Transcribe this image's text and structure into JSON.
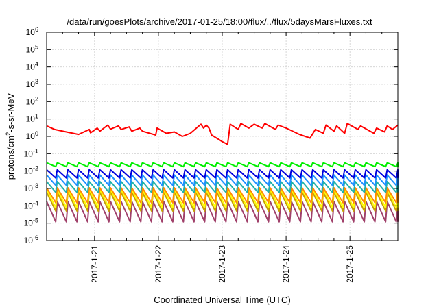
{
  "chart_data": {
    "type": "line",
    "title": "/data/run/goesPlots/archive/2017-01-25/18:00/flux/../flux/5daysMarsFluxes.txt",
    "xlabel": "Coordinated Universal Time (UTC)",
    "ylabel": {
      "base": "protons/cm",
      "sup": "2",
      "rest": "-s-sr-MeV"
    },
    "y_scale": "log",
    "ylim": [
      1e-06,
      1000000.0
    ],
    "y_ticks": [
      {
        "value": 1e-06,
        "base": "10",
        "exp": "-6"
      },
      {
        "value": 1e-05,
        "base": "10",
        "exp": "-5"
      },
      {
        "value": 0.0001,
        "base": "10",
        "exp": "-4"
      },
      {
        "value": 0.001,
        "base": "10",
        "exp": "-3"
      },
      {
        "value": 0.01,
        "base": "10",
        "exp": "-2"
      },
      {
        "value": 0.1,
        "base": "10",
        "exp": "-1"
      },
      {
        "value": 1,
        "base": "10",
        "exp": "0"
      },
      {
        "value": 10,
        "base": "10",
        "exp": "1"
      },
      {
        "value": 100,
        "base": "10",
        "exp": "2"
      },
      {
        "value": 1000,
        "base": "10",
        "exp": "3"
      },
      {
        "value": 10000,
        "base": "10",
        "exp": "4"
      },
      {
        "value": 100000,
        "base": "10",
        "exp": "5"
      },
      {
        "value": 1000000,
        "base": "10",
        "exp": "6"
      }
    ],
    "xlim": [
      "2017-01-20T06:00",
      "2017-01-25T18:00"
    ],
    "x_ticks": [
      "2017-1-21",
      "2017-1-22",
      "2017-1-23",
      "2017-1-24",
      "2017-1-25"
    ],
    "grid": true,
    "series": [
      {
        "color": "#ff0000",
        "x": [
          "2017-01-20T06:00",
          "2017-01-20T09:00",
          "2017-01-20T12:00",
          "2017-01-20T18:00",
          "2017-01-20T22:00",
          "2017-01-20T22:30",
          "2017-01-21T01:00",
          "2017-01-21T02:00",
          "2017-01-21T05:00",
          "2017-01-21T06:00",
          "2017-01-21T09:00",
          "2017-01-21T10:00",
          "2017-01-21T13:00",
          "2017-01-21T14:00",
          "2017-01-21T17:00",
          "2017-01-21T18:00",
          "2017-01-21T23:00",
          "2017-01-21T23:30",
          "2017-01-22T03:00",
          "2017-01-22T06:00",
          "2017-01-22T09:00",
          "2017-01-22T12:00",
          "2017-01-22T16:00",
          "2017-01-22T17:00",
          "2017-01-22T18:00",
          "2017-01-22T19:00",
          "2017-01-22T20:00",
          "2017-01-23T00:00",
          "2017-01-23T02:00",
          "2017-01-23T03:00",
          "2017-01-23T06:00",
          "2017-01-23T07:00",
          "2017-01-23T10:00",
          "2017-01-23T12:00",
          "2017-01-23T15:00",
          "2017-01-23T16:00",
          "2017-01-23T20:00",
          "2017-01-23T21:00",
          "2017-01-24T00:00",
          "2017-01-24T05:00",
          "2017-01-24T09:00",
          "2017-01-24T11:00",
          "2017-01-24T14:00",
          "2017-01-24T15:00",
          "2017-01-24T18:00",
          "2017-01-24T19:00",
          "2017-01-24T22:00",
          "2017-01-24T23:00",
          "2017-01-25T03:00",
          "2017-01-25T04:00",
          "2017-01-25T09:00",
          "2017-01-25T10:00",
          "2017-01-25T13:00",
          "2017-01-25T14:00",
          "2017-01-25T16:00",
          "2017-01-25T18:00"
        ],
        "y": [
          4.0,
          2.5,
          2.0,
          1.3,
          2.5,
          1.6,
          3.0,
          2.0,
          4.5,
          2.6,
          4.0,
          2.5,
          3.5,
          2.0,
          3.0,
          2.0,
          1.2,
          3.0,
          1.5,
          1.8,
          1.0,
          1.5,
          5.0,
          3.0,
          4.5,
          3.0,
          1.2,
          0.5,
          0.35,
          5.0,
          2.5,
          5.5,
          3.0,
          5.0,
          3.0,
          5.5,
          2.5,
          4.5,
          3.0,
          1.3,
          0.8,
          2.5,
          1.5,
          4.5,
          2.0,
          4.0,
          1.5,
          5.5,
          2.5,
          4.0,
          1.5,
          3.0,
          1.8,
          4.0,
          2.5,
          4.5
        ]
      },
      {
        "color": "#00ee00",
        "sawtooth": {
          "cycle_hours": 4,
          "peak": 0.03,
          "trough": 0.018
        }
      },
      {
        "color": "#0000dd",
        "sawtooth": {
          "cycle_hours": 4,
          "peak": 0.012,
          "trough": 0.004
        }
      },
      {
        "color": "#1e90ff",
        "sawtooth": {
          "cycle_hours": 4,
          "peak": 0.006,
          "trough": 0.0015
        }
      },
      {
        "color": "#20b2aa",
        "sawtooth": {
          "cycle_hours": 4,
          "peak": 0.0025,
          "trough": 0.0006
        }
      },
      {
        "color": "#ff8c00",
        "sawtooth": {
          "cycle_hours": 4,
          "peak": 0.0011,
          "trough": 0.00015
        }
      },
      {
        "color": "#ffff00",
        "sawtooth": {
          "cycle_hours": 4,
          "peak": 0.0009,
          "trough": 8e-05
        }
      },
      {
        "color": "#c8a000",
        "sawtooth": {
          "cycle_hours": 4,
          "peak": 0.0006,
          "trough": 5e-05
        }
      },
      {
        "color": "#a0406a",
        "sawtooth": {
          "cycle_hours": 4,
          "peak": 0.00018,
          "trough": 1.2e-05
        }
      }
    ]
  }
}
